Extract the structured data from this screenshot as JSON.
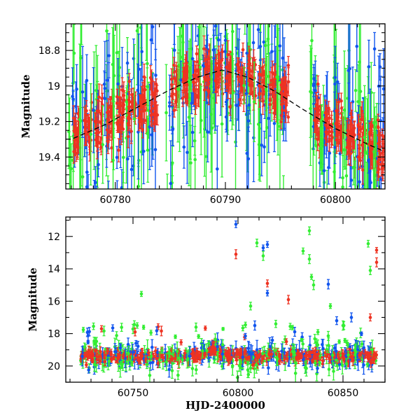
{
  "chart_data": [
    {
      "type": "scatter",
      "panel": "top",
      "title": "",
      "xlabel": "",
      "ylabel": "Magnitude",
      "xlim": [
        60775.5,
        60804.5
      ],
      "ylim": [
        19.58,
        18.65
      ],
      "y_inverted": true,
      "x_ticks": [
        60780,
        60790,
        60800
      ],
      "y_ticks": [
        18.8,
        19,
        19.2,
        19.4
      ],
      "x_tick_labels": [
        "60780",
        "60790",
        "60800"
      ],
      "y_tick_labels": [
        "18.8",
        "19",
        "19.2",
        "19.4"
      ],
      "colors": {
        "green": "#33ee33",
        "blue": "#1155ee",
        "red": "#ee3322",
        "model": "#000000"
      },
      "model_curve": {
        "style": "dashed",
        "peak_x": 60789.7,
        "peak_y": 18.91,
        "points": [
          [
            60776,
            19.3
          ],
          [
            60779,
            19.22
          ],
          [
            60782,
            19.12
          ],
          [
            60785,
            19.02
          ],
          [
            60787.5,
            18.95
          ],
          [
            60789.7,
            18.91
          ],
          [
            60792,
            18.95
          ],
          [
            60794.5,
            19.03
          ],
          [
            60797,
            19.13
          ],
          [
            60800,
            19.24
          ],
          [
            60803,
            19.33
          ],
          [
            60804.5,
            19.37
          ]
        ]
      },
      "nights": [
        60776.3,
        60777.3,
        60778.3,
        60779.3,
        60780.3,
        60781.3,
        60782.3,
        60783.3,
        60785.2,
        60786.2,
        60787.2,
        60788.2,
        60789.2,
        60790.2,
        60791.2,
        60792.2,
        60793.2,
        60794.2,
        60795.2,
        60798.2,
        60799.2,
        60800.2,
        60801.2,
        60802.2,
        60803.2,
        60804.0
      ],
      "series": [
        {
          "name": "",
          "color": "green",
          "note": "large scatter"
        },
        {
          "name": "",
          "color": "blue",
          "note": "moderate scatter"
        },
        {
          "name": "",
          "color": "red",
          "note": "dense, follows model"
        }
      ]
    },
    {
      "type": "scatter",
      "panel": "bottom",
      "title": "",
      "xlabel": "HJD-2400000",
      "ylabel": "Magnitude",
      "xlim": [
        60718,
        60870
      ],
      "ylim": [
        21.0,
        10.8
      ],
      "y_inverted": true,
      "x_ticks": [
        60750,
        60800,
        60850
      ],
      "y_ticks": [
        12,
        14,
        16,
        18,
        20
      ],
      "x_tick_labels": [
        "60750",
        "60800",
        "60850"
      ],
      "y_tick_labels": [
        "12",
        "14",
        "16",
        "18",
        "20"
      ],
      "baseline_range": [
        60725,
        60866
      ],
      "baseline_mag": 19.4,
      "outliers": [
        {
          "x": 60799,
          "y": 11.25,
          "c": "blue"
        },
        {
          "x": 60799,
          "y": 13.1,
          "c": "red"
        },
        {
          "x": 60809,
          "y": 12.4,
          "c": "green"
        },
        {
          "x": 60812,
          "y": 12.7,
          "c": "blue"
        },
        {
          "x": 60814,
          "y": 12.5,
          "c": "blue"
        },
        {
          "x": 60812,
          "y": 13.2,
          "c": "green"
        },
        {
          "x": 60814,
          "y": 14.9,
          "c": "red"
        },
        {
          "x": 60814,
          "y": 15.5,
          "c": "blue"
        },
        {
          "x": 60806,
          "y": 16.3,
          "c": "green"
        },
        {
          "x": 60824,
          "y": 15.9,
          "c": "red"
        },
        {
          "x": 60831,
          "y": 12.9,
          "c": "green"
        },
        {
          "x": 60834,
          "y": 11.65,
          "c": "green"
        },
        {
          "x": 60834,
          "y": 13.4,
          "c": "green"
        },
        {
          "x": 60835,
          "y": 14.5,
          "c": "green"
        },
        {
          "x": 60836,
          "y": 15.0,
          "c": "green"
        },
        {
          "x": 60843,
          "y": 14.95,
          "c": "blue"
        },
        {
          "x": 60844,
          "y": 16.3,
          "c": "green"
        },
        {
          "x": 60862,
          "y": 12.45,
          "c": "green"
        },
        {
          "x": 60863,
          "y": 14.1,
          "c": "green"
        },
        {
          "x": 60866,
          "y": 12.85,
          "c": "red"
        },
        {
          "x": 60866,
          "y": 13.6,
          "c": "red"
        },
        {
          "x": 60863,
          "y": 17.0,
          "c": "red"
        },
        {
          "x": 60754,
          "y": 15.55,
          "c": "green"
        },
        {
          "x": 60735,
          "y": 17.7,
          "c": "red"
        },
        {
          "x": 60751,
          "y": 17.9,
          "c": "red"
        },
        {
          "x": 60752,
          "y": 17.5,
          "c": "green"
        },
        {
          "x": 60780,
          "y": 17.6,
          "c": "green"
        },
        {
          "x": 60808,
          "y": 17.5,
          "c": "blue"
        },
        {
          "x": 60818,
          "y": 17.4,
          "c": "green"
        },
        {
          "x": 60847,
          "y": 17.2,
          "c": "blue"
        },
        {
          "x": 60850,
          "y": 17.5,
          "c": "green"
        },
        {
          "x": 60854,
          "y": 17.0,
          "c": "blue"
        }
      ]
    }
  ]
}
